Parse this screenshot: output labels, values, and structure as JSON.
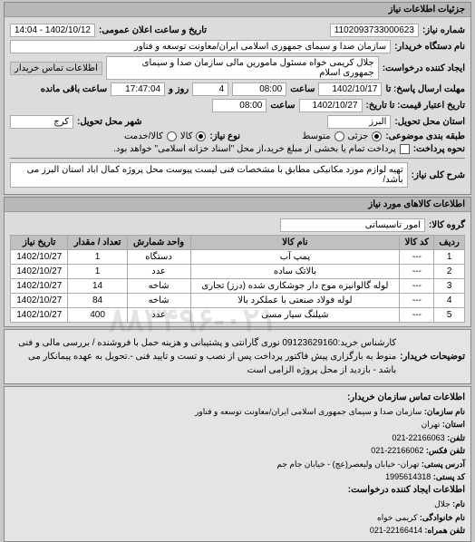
{
  "watermark": "۸۸۳۴۹۶-۰۲۱",
  "panel1": {
    "title": "جزئیات اطلاعات نیاز",
    "need_no_label": "شماره نیاز:",
    "need_no": "1102093733000623",
    "announce_label": "تاریخ و ساعت اعلان عمومی:",
    "announce": "1402/10/12 - 14:04",
    "buyer_label": "نام دستگاه خریدار:",
    "buyer": "سازمان صدا و سیمای جمهوری اسلامی ایران/معاونت توسعه و فناور",
    "requester_label": "ایجاد کننده درخواست:",
    "requester": "جلال کریمی خواه مسئول مامورین مالی   سازمان صدا و سیمای جمهوری اسلام",
    "contact_btn": "اطلاعات تماس خریدار",
    "deadline_resp_label": "مهلت ارسال پاسخ: تا",
    "deadline_date": "1402/10/17",
    "time_label": "ساعت",
    "deadline_time": "08:00",
    "days_remain": "4",
    "days_remain_label": "روز و",
    "time_remain": "17:47:04",
    "time_remain_label": "ساعت باقی مانده",
    "validity_label": "تاریخ اعتبار قیمت: تا تاریخ:",
    "validity_date": "1402/10/27",
    "validity_time": "08:00",
    "province_label": "استان محل تحویل:",
    "province": "البرز",
    "city_label": "شهر محل تحویل:",
    "city": "کرج",
    "class_label": "طبقه بندی موضوعی:",
    "opt_part": "جزئی",
    "opt_goods": "کالا",
    "opt_mid": "متوسط",
    "opt_svc": "کالا/خدمت",
    "req_type_label": "نوع نیاز:",
    "pay_label": "نحوه پرداخت:",
    "pay_text": "پرداخت تمام یا بخشی از مبلغ خرید،از محل \"اسناد خزانه اسلامی\" خواهد بود.",
    "main_desc_label": "شرح کلی نیاز:",
    "main_desc": "تهیه لوازم مورد مکانیکی مطابق با مشخصات فنی لیست پیوست محل پروژه کمال اباد استان البرز می باشد/"
  },
  "panel2": {
    "title": "اطلاعات کالاهای مورد نیاز",
    "group_label": "گروه کالا:",
    "group": "امور تاسیساتی",
    "columns": [
      "ردیف",
      "کد کالا",
      "نام کالا",
      "واحد شمارش",
      "تعداد / مقدار",
      "تاریخ نیاز"
    ],
    "rows": [
      [
        "1",
        "---",
        "پمپ آب",
        "دستگاه",
        "1",
        "1402/10/27"
      ],
      [
        "2",
        "---",
        "بالاتک ساده",
        "عدد",
        "1",
        "1402/10/27"
      ],
      [
        "3",
        "---",
        "لوله گالوانیزه موج دار جوشکاری شده (درز) تجاری",
        "شاخه",
        "14",
        "1402/10/27"
      ],
      [
        "4",
        "---",
        "لوله فولاد صنعتی با عملکرد بالا",
        "شاخه",
        "84",
        "1402/10/27"
      ],
      [
        "5",
        "---",
        "شیلنگ سیار مسی",
        "عدد",
        "400",
        "1402/10/27"
      ]
    ]
  },
  "desc": {
    "label": "توضیحات خریدار:",
    "text": "کارشناس خرید:09123629160 نوری گارانتی و پشتیبانی و هزینه حمل با فروشنده / بررسی مالی و فنی منوط به بارگزاری پیش فاکتور پرداخت پس از نصب و تست و تایید فنی -.تحویل به عهده پیمانکار می باشد - بازدید از محل پروژه الزامی است"
  },
  "contact": {
    "title": "اطلاعات تماس سازمان خریدار:",
    "org_label": "نام سازمان:",
    "org": "سازمان صدا و سیمای جمهوری اسلامی ایران/معاونت توسعه و فناور",
    "prov_label": "استان:",
    "prov": "تهران",
    "tel_label": "تلفن:",
    "tel": "22166063-021",
    "fax_label": "تلفن فکس:",
    "fax": "22166062-021",
    "addr_label": "آدرس پستی:",
    "addr": "تهران- خیابان ولیعصر(عج) - خیابان جام جم",
    "zip_label": "کد پستی:",
    "zip": "1995614318",
    "creator_title": "اطلاعات ایجاد کننده درخواست:",
    "name_label": "نام:",
    "name": "جلال",
    "family_label": "نام خانوادگی:",
    "family": "کریمی خواه",
    "mobile_label": "تلفن همراه:",
    "mobile": "22166414-021"
  }
}
